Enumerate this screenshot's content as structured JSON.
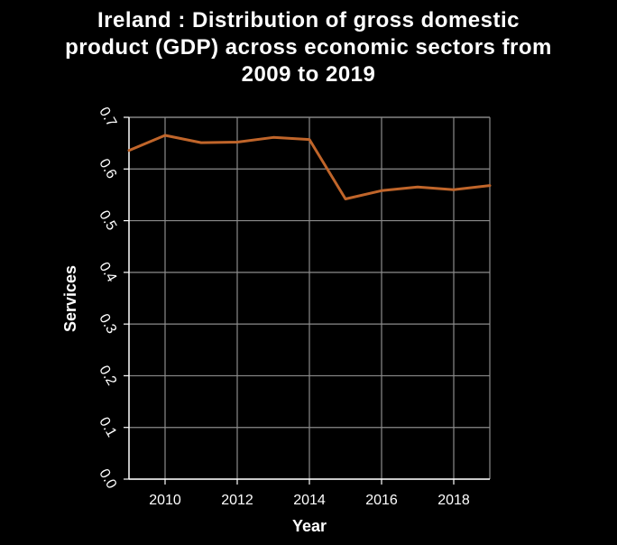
{
  "chart_data": {
    "type": "line",
    "title_lines": [
      "Ireland : Distribution of gross domestic",
      "product (GDP) across economic sectors from",
      "2009 to 2019"
    ],
    "xlabel": "Year",
    "ylabel": "Services",
    "xlim": [
      2009,
      2019
    ],
    "ylim": [
      0,
      0.7
    ],
    "x_ticks": [
      2010,
      2012,
      2014,
      2016,
      2018
    ],
    "y_ticks": [
      "0.0",
      "0.1",
      "0.2",
      "0.3",
      "0.4",
      "0.5",
      "0.6",
      "0.7"
    ],
    "grid": true,
    "series": [
      {
        "x": [
          2009,
          2010,
          2011,
          2012,
          2013,
          2014,
          2015,
          2016,
          2017,
          2018,
          2019
        ],
        "values": [
          0.636,
          0.665,
          0.651,
          0.652,
          0.661,
          0.657,
          0.542,
          0.558,
          0.565,
          0.56,
          0.568
        ],
        "color": "#c0652a"
      }
    ]
  },
  "colors": {
    "background": "#000000",
    "grid": "#8c8c8c",
    "axis": "#ffffff",
    "text": "#ffffff"
  }
}
